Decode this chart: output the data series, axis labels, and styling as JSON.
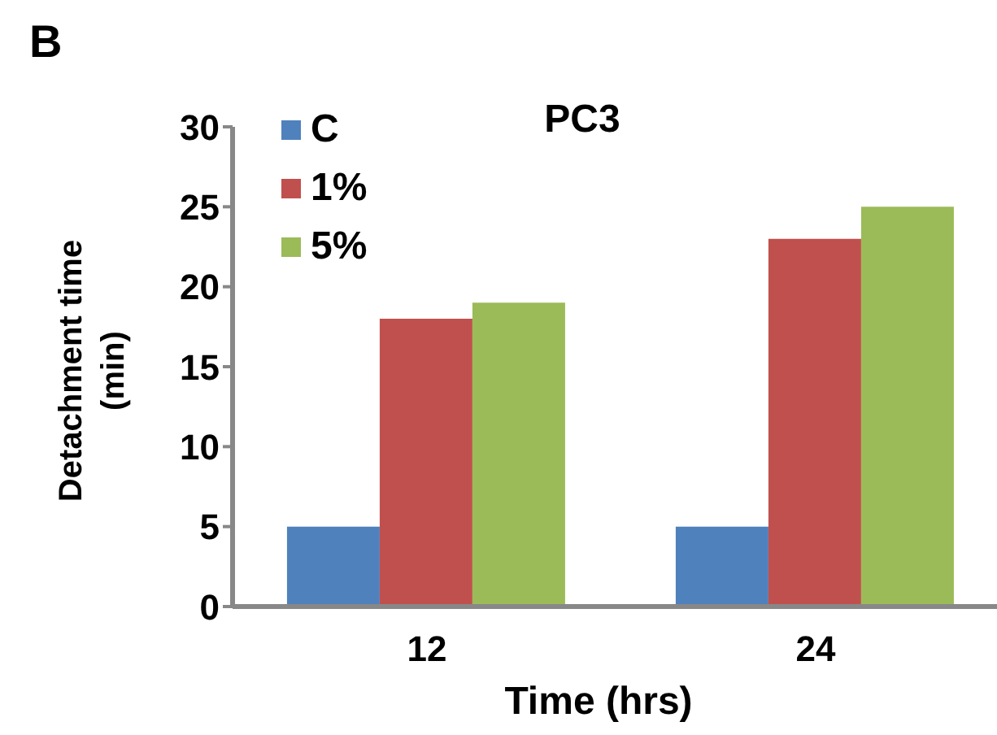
{
  "chart_data": {
    "type": "bar",
    "title": "PC3",
    "xlabel": "Time (hrs)",
    "ylabel": "Detachment time (min)",
    "annotations": [
      "B"
    ],
    "categories": [
      "12",
      "24"
    ],
    "series": [
      {
        "name": "C",
        "color": "#4f81bd",
        "values": [
          5,
          5
        ]
      },
      {
        "name": "1%",
        "color": "#c0504d",
        "values": [
          18,
          23
        ]
      },
      {
        "name": "5%",
        "color": "#9bbb59",
        "values": [
          19,
          25
        ]
      }
    ],
    "ylim": [
      0,
      30
    ],
    "yticks": [
      0,
      5,
      10,
      15,
      20,
      25,
      30
    ],
    "grid": false,
    "legend": "top left"
  }
}
